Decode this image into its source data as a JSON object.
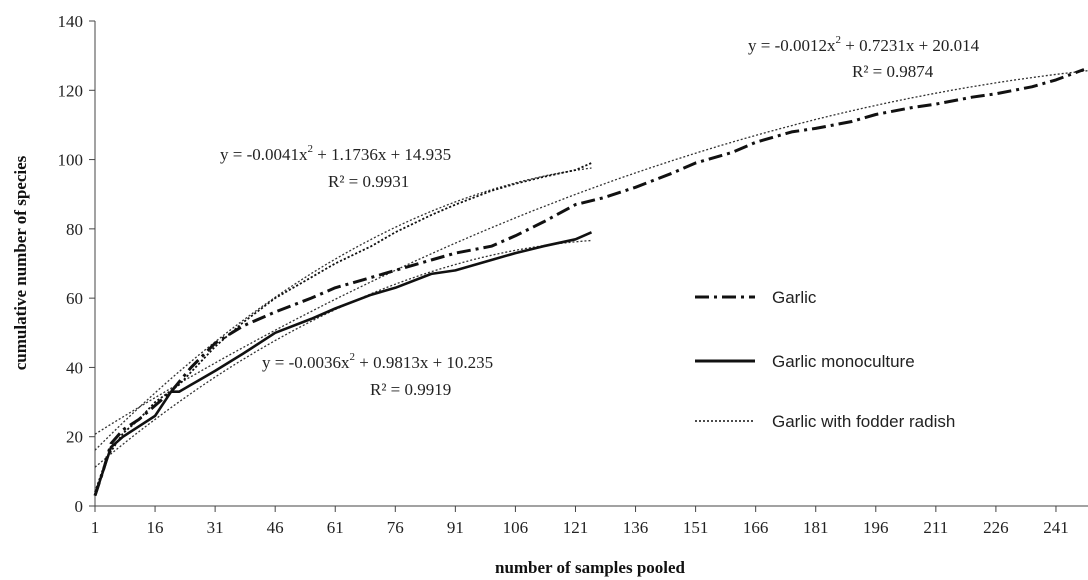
{
  "chart_data": {
    "type": "line",
    "xlabel": "number of samples pooled",
    "ylabel": "cumulative number of species",
    "xlim": [
      1,
      249
    ],
    "ylim": [
      0,
      140
    ],
    "x_ticks": [
      "1",
      "16",
      "31",
      "46",
      "61",
      "76",
      "91",
      "106",
      "121",
      "136",
      "151",
      "166",
      "181",
      "196",
      "211",
      "226",
      "241"
    ],
    "y_ticks": [
      "0",
      "20",
      "40",
      "60",
      "80",
      "100",
      "120",
      "140"
    ],
    "grid": false,
    "legend_position": "right",
    "series": [
      {
        "name": "Garlic",
        "style": "dash-dot",
        "color": "#111111",
        "x": [
          1,
          3,
          5,
          8,
          12,
          16,
          20,
          25,
          31,
          38,
          46,
          55,
          61,
          70,
          76,
          85,
          91,
          100,
          106,
          113,
          121,
          128,
          136,
          145,
          151,
          160,
          166,
          175,
          181,
          190,
          196,
          205,
          211,
          220,
          226,
          235,
          241,
          248
        ],
        "y": [
          3,
          10,
          18,
          22,
          25,
          29,
          33,
          40,
          47,
          52,
          56,
          60,
          63,
          66,
          68,
          71,
          73,
          75,
          78,
          82,
          87,
          89,
          92,
          96,
          99,
          102,
          105,
          108,
          109,
          111,
          113,
          115,
          116,
          118,
          119,
          121,
          123,
          126
        ]
      },
      {
        "name": "Garlic monoculture",
        "style": "solid",
        "color": "#111111",
        "x": [
          1,
          3,
          5,
          8,
          12,
          16,
          20,
          22,
          25,
          31,
          38,
          46,
          55,
          61,
          70,
          76,
          85,
          91,
          100,
          106,
          113,
          121,
          125
        ],
        "y": [
          3,
          10,
          17,
          20,
          23,
          26,
          33,
          33,
          35,
          39,
          44,
          50,
          54,
          57,
          61,
          63,
          67,
          68,
          71,
          73,
          75,
          77,
          79
        ]
      },
      {
        "name": "Garlic with fodder radish",
        "style": "dotted",
        "color": "#111111",
        "x": [
          1,
          4,
          8,
          12,
          16,
          22,
          31,
          38,
          46,
          55,
          61,
          70,
          76,
          85,
          91,
          100,
          106,
          113,
          121,
          125
        ],
        "y": [
          4,
          14,
          21,
          25,
          30,
          35,
          46,
          53,
          60,
          66,
          70,
          75,
          79,
          84,
          87,
          91,
          93,
          95,
          97,
          99
        ]
      }
    ],
    "trendlines": [
      {
        "equation_main": "y = -0.0041x",
        "equation_tail": " + 1.1736x + 14.935",
        "r2": "R² = 0.9931",
        "a": -0.0041,
        "b": 1.1736,
        "c": 14.935,
        "x_range": [
          1,
          125
        ]
      },
      {
        "equation_main": "y = -0.0036x",
        "equation_tail": " + 0.9813x + 10.235",
        "r2": "R² = 0.9919",
        "a": -0.0036,
        "b": 0.9813,
        "c": 10.235,
        "x_range": [
          1,
          125
        ]
      },
      {
        "equation_main": "y = -0.0012x",
        "equation_tail": " + 0.7231x + 20.014",
        "r2": "R² = 0.9874",
        "a": -0.0012,
        "b": 0.7231,
        "c": 20.014,
        "x_range": [
          1,
          249
        ]
      }
    ],
    "superscript": "2"
  }
}
